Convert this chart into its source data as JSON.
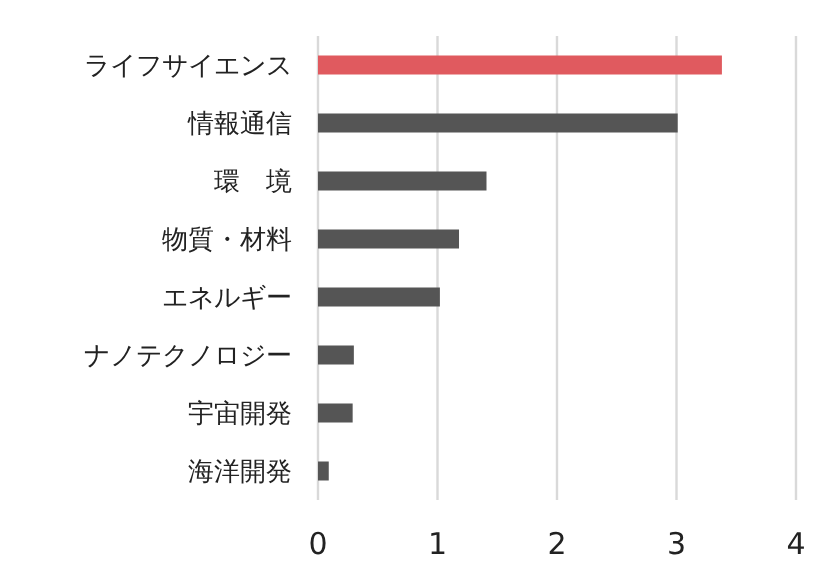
{
  "chart_data": {
    "type": "bar",
    "orientation": "horizontal",
    "categories": [
      "ライフサイエンス",
      "情報通信",
      "環　境",
      "物質・材料",
      "エネルギー",
      "ナノテクノロジー",
      "宇宙開発",
      "海洋開発"
    ],
    "values": [
      3.38,
      3.01,
      1.41,
      1.18,
      1.02,
      0.3,
      0.29,
      0.09
    ],
    "colors": [
      "#e05a5f",
      "#555555",
      "#555555",
      "#555555",
      "#555555",
      "#555555",
      "#555555",
      "#555555"
    ],
    "xlim": [
      0,
      4
    ],
    "xticks": [
      0,
      1,
      2,
      3,
      4
    ],
    "grid": "x"
  }
}
